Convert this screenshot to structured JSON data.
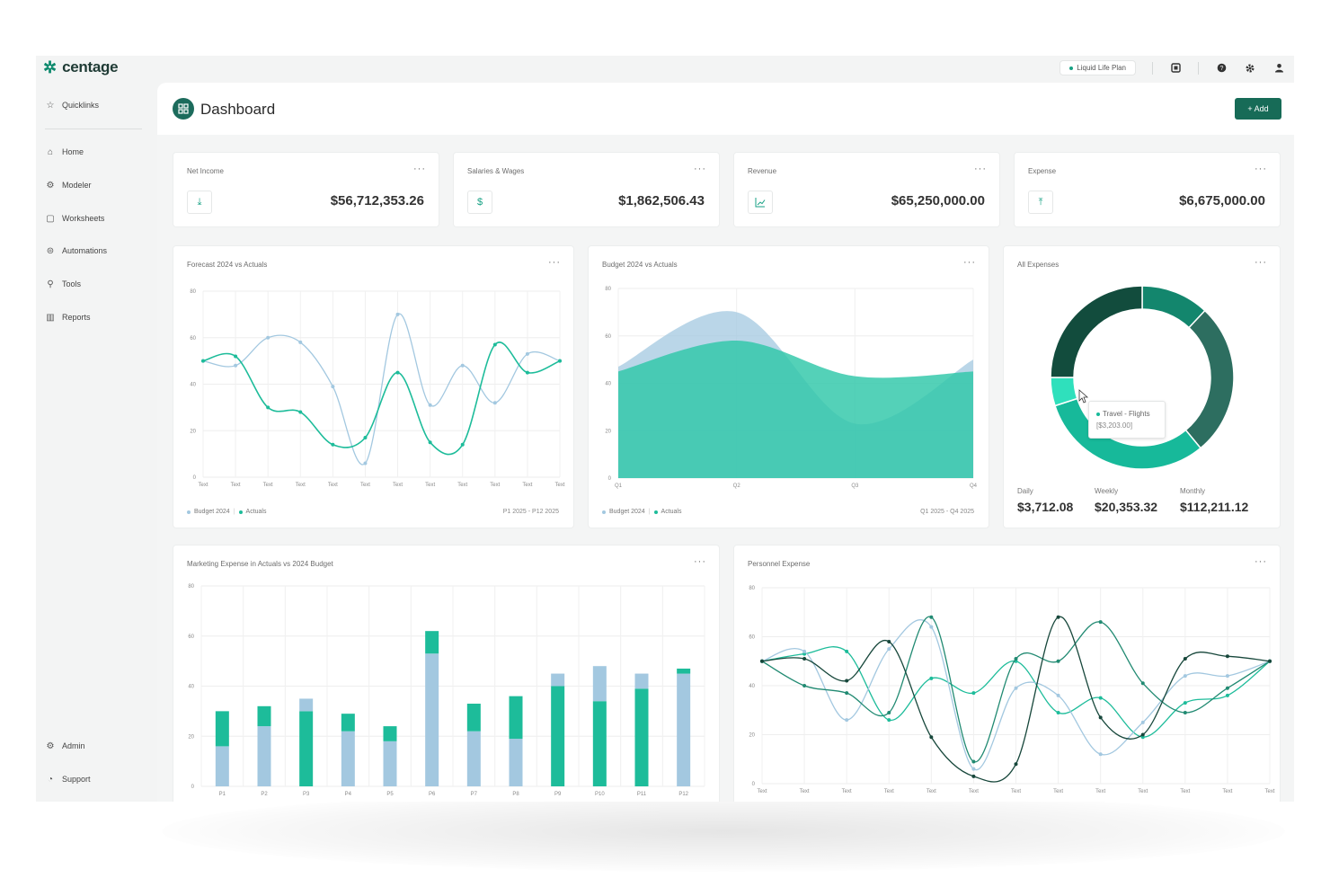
{
  "brand": {
    "name": "centage"
  },
  "topbar": {
    "plan_label": "Liquid Life Plan",
    "icons": [
      "notifications-icon",
      "help-icon",
      "settings-icon",
      "user-icon"
    ]
  },
  "sidebar": {
    "quicklinks": "Quicklinks",
    "items": [
      {
        "label": "Home",
        "icon": "home-icon"
      },
      {
        "label": "Modeler",
        "icon": "modeler-icon"
      },
      {
        "label": "Worksheets",
        "icon": "worksheet-icon"
      },
      {
        "label": "Automations",
        "icon": "automation-icon"
      },
      {
        "label": "Tools",
        "icon": "tools-icon"
      },
      {
        "label": "Reports",
        "icon": "reports-icon"
      }
    ],
    "bottom": [
      {
        "label": "Admin",
        "icon": "admin-icon"
      },
      {
        "label": "Support",
        "icon": "support-icon"
      }
    ]
  },
  "header": {
    "title": "Dashboard",
    "add_label": "+ Add"
  },
  "kpis": [
    {
      "title": "Net Income",
      "value": "$56,712,353.26",
      "icon": "download-icon"
    },
    {
      "title": "Salaries & Wages",
      "value": "$1,862,506.43",
      "icon": "money-icon"
    },
    {
      "title": "Revenue",
      "value": "$65,250,000.00",
      "icon": "line-chart-icon"
    },
    {
      "title": "Expense",
      "value": "$6,675,000.00",
      "icon": "upload-icon"
    }
  ],
  "colors": {
    "brand": "#176b57",
    "teal": "#1dbc9a",
    "light_blue": "#a3c8e0",
    "dark_green": "#134a3c"
  },
  "charts": {
    "forecast": {
      "title": "Forecast 2024 vs Actuals",
      "legend": [
        "Budget 2024",
        "Actuals"
      ],
      "range": "P1 2025 - P12 2025",
      "chart_data": {
        "type": "line",
        "x": [
          "Text",
          "Text",
          "Text",
          "Text",
          "Text",
          "Text",
          "Text",
          "Text",
          "Text",
          "Text",
          "Text",
          "Text"
        ],
        "yticks": [
          0,
          20,
          40,
          60,
          80
        ],
        "ylim": [
          0,
          80
        ],
        "series": [
          {
            "name": "Budget 2024",
            "values": [
              50,
              48,
              60,
              58,
              39,
              6,
              70,
              31,
              48,
              32,
              53,
              50
            ]
          },
          {
            "name": "Actuals",
            "values": [
              50,
              52,
              30,
              28,
              14,
              17,
              45,
              15,
              14,
              57,
              45,
              50
            ]
          }
        ]
      }
    },
    "budget": {
      "title": "Budget 2024 vs Actuals",
      "legend": [
        "Budget 2024",
        "Actuals"
      ],
      "range": "Q1 2025 - Q4 2025",
      "chart_data": {
        "type": "area",
        "x": [
          "Q1",
          "Q2",
          "Q3",
          "Q4"
        ],
        "yticks": [
          0,
          20,
          40,
          60,
          80
        ],
        "ylim": [
          0,
          80
        ],
        "series": [
          {
            "name": "Budget 2024",
            "values": [
              47,
              70,
              23,
              50
            ]
          },
          {
            "name": "Actuals",
            "values": [
              45,
              58,
              43,
              45
            ]
          }
        ]
      }
    },
    "expenses": {
      "title": "All Expenses",
      "tooltip_label": "Travel - Flights",
      "tooltip_value": "[$3,203.00]",
      "stats": [
        {
          "label": "Daily",
          "value": "$3,712.08"
        },
        {
          "label": "Weekly",
          "value": "$20,353.32"
        },
        {
          "label": "Monthly",
          "value": "$112,211.12"
        }
      ],
      "chart_data": {
        "type": "pie",
        "donut": true,
        "slices": [
          {
            "value": 12,
            "color": "#13866d"
          },
          {
            "value": 27,
            "color": "#2d6e60"
          },
          {
            "value": 31,
            "color": "#17b99a"
          },
          {
            "value": 5,
            "color": "#2fe0bc"
          },
          {
            "value": 25,
            "color": "#124c3d"
          }
        ]
      }
    },
    "marketing": {
      "title": "Marketing Expense in Actuals vs 2024 Budget",
      "chart_data": {
        "type": "bar",
        "stacked": true,
        "categories": [
          "P1",
          "P2",
          "P3",
          "P4",
          "P5",
          "P6",
          "P7",
          "P8",
          "P9",
          "P10",
          "P11",
          "P12"
        ],
        "yticks": [
          0,
          20,
          40,
          60,
          80
        ],
        "ylim": [
          0,
          80
        ],
        "segments": [
          {
            "bottom": {
              "value": 16,
              "color": "#a3c8e0"
            },
            "top": {
              "value": 14,
              "color": "#1dbc9a"
            }
          },
          {
            "bottom": {
              "value": 24,
              "color": "#a3c8e0"
            },
            "top": {
              "value": 8,
              "color": "#1dbc9a"
            }
          },
          {
            "bottom": {
              "value": 30,
              "color": "#1dbc9a"
            },
            "top": {
              "value": 5,
              "color": "#a3c8e0"
            }
          },
          {
            "bottom": {
              "value": 22,
              "color": "#a3c8e0"
            },
            "top": {
              "value": 7,
              "color": "#1dbc9a"
            }
          },
          {
            "bottom": {
              "value": 18,
              "color": "#a3c8e0"
            },
            "top": {
              "value": 6,
              "color": "#1dbc9a"
            }
          },
          {
            "bottom": {
              "value": 53,
              "color": "#a3c8e0"
            },
            "top": {
              "value": 9,
              "color": "#1dbc9a"
            }
          },
          {
            "bottom": {
              "value": 22,
              "color": "#a3c8e0"
            },
            "top": {
              "value": 11,
              "color": "#1dbc9a"
            }
          },
          {
            "bottom": {
              "value": 19,
              "color": "#a3c8e0"
            },
            "top": {
              "value": 17,
              "color": "#1dbc9a"
            }
          },
          {
            "bottom": {
              "value": 40,
              "color": "#1dbc9a"
            },
            "top": {
              "value": 5,
              "color": "#a3c8e0"
            }
          },
          {
            "bottom": {
              "value": 34,
              "color": "#1dbc9a"
            },
            "top": {
              "value": 14,
              "color": "#a3c8e0"
            }
          },
          {
            "bottom": {
              "value": 39,
              "color": "#1dbc9a"
            },
            "top": {
              "value": 6,
              "color": "#a3c8e0"
            }
          },
          {
            "bottom": {
              "value": 45,
              "color": "#a3c8e0"
            },
            "top": {
              "value": 2,
              "color": "#1dbc9a"
            }
          }
        ]
      }
    },
    "personnel": {
      "title": "Personnel Expense",
      "chart_data": {
        "type": "line",
        "x": [
          "Text",
          "Text",
          "Text",
          "Text",
          "Text",
          "Text",
          "Text",
          "Text",
          "Text",
          "Text",
          "Text",
          "Text",
          "Text"
        ],
        "yticks": [
          0,
          20,
          40,
          60,
          80
        ],
        "ylim": [
          0,
          80
        ],
        "series": [
          {
            "color": "#1dbc9a",
            "values": [
              50,
              53,
              54,
              26,
              43,
              37,
              50,
              29,
              35,
              19,
              33,
              36,
              50
            ]
          },
          {
            "color": "#a3c8e0",
            "values": [
              50,
              54,
              26,
              55,
              64,
              6,
              39,
              36,
              12,
              25,
              44,
              44,
              50
            ]
          },
          {
            "color": "#218a72",
            "values": [
              50,
              40,
              37,
              29,
              68,
              9,
              51,
              50,
              66,
              41,
              29,
              39,
              50
            ]
          },
          {
            "color": "#17473b",
            "values": [
              50,
              51,
              42,
              58,
              19,
              3,
              8,
              68,
              27,
              20,
              51,
              52,
              50
            ]
          }
        ]
      }
    }
  }
}
